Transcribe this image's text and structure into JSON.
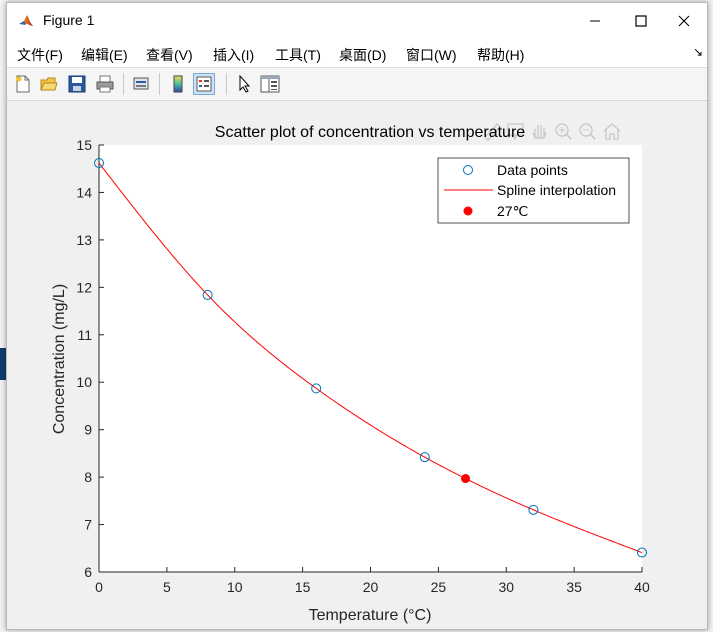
{
  "window": {
    "title": "Figure 1"
  },
  "menubar": {
    "items": [
      "文件(F)",
      "编辑(E)",
      "查看(V)",
      "插入(I)",
      "工具(T)",
      "桌面(D)",
      "窗口(W)",
      "帮助(H)"
    ],
    "overflow": "↘"
  },
  "toolbar": {
    "buttons": [
      "new-figure",
      "open-file",
      "save",
      "print",
      "print-preview",
      "colorbar",
      "legend",
      "edit-plot",
      "property-inspector"
    ]
  },
  "colors": {
    "data_points": "#0072bd",
    "spline": "#ff0000",
    "highlight": "#ff0000",
    "plot_bg": "#ffffff",
    "figure_bg": "#f0f0f0"
  },
  "chart_data": {
    "type": "scatter",
    "title": "Scatter plot of concentration vs temperature",
    "xlabel": "Temperature (°C)",
    "ylabel": "Concentration (mg/L)",
    "xlim": [
      0,
      40
    ],
    "ylim": [
      6,
      15
    ],
    "xticks": [
      0,
      5,
      10,
      15,
      20,
      25,
      30,
      35,
      40
    ],
    "yticks": [
      6,
      7,
      8,
      9,
      10,
      11,
      12,
      13,
      14,
      15
    ],
    "grid": false,
    "legend_position": "top-right",
    "series": [
      {
        "name": "Data points",
        "kind": "markers",
        "marker": "open-circle",
        "x": [
          0,
          8,
          16,
          24,
          32,
          40
        ],
        "y": [
          14.62,
          11.84,
          9.87,
          8.42,
          7.31,
          6.41
        ]
      },
      {
        "name": "Spline interpolation",
        "kind": "line",
        "x": [
          0,
          8,
          16,
          24,
          32,
          40
        ],
        "y": [
          14.62,
          11.84,
          9.87,
          8.42,
          7.31,
          6.41
        ]
      },
      {
        "name": "27℃",
        "kind": "markers",
        "marker": "filled-circle",
        "x": [
          27
        ],
        "y": [
          7.97
        ]
      }
    ]
  }
}
